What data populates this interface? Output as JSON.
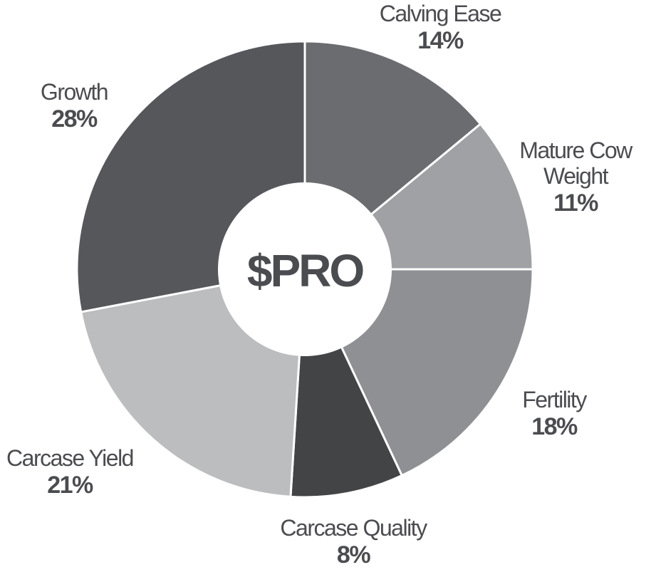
{
  "chart_data": {
    "type": "pie",
    "center_label": "$PRO",
    "slices": [
      {
        "label": "Calving Ease",
        "value": 14,
        "value_label": "14%",
        "color": "#6b6c70"
      },
      {
        "label": "Mature Cow Weight",
        "label_lines": [
          "Mature Cow",
          "Weight"
        ],
        "value": 11,
        "value_label": "11%",
        "color": "#a0a1a4"
      },
      {
        "label": "Fertility",
        "value": 18,
        "value_label": "18%",
        "color": "#8f9094"
      },
      {
        "label": "Carcase Quality",
        "value": 8,
        "value_label": "8%",
        "color": "#434446"
      },
      {
        "label": "Carcase Yield",
        "value": 21,
        "value_label": "21%",
        "color": "#bcbdbf"
      },
      {
        "label": "Growth",
        "value": 28,
        "value_label": "28%",
        "color": "#56575b"
      }
    ]
  }
}
